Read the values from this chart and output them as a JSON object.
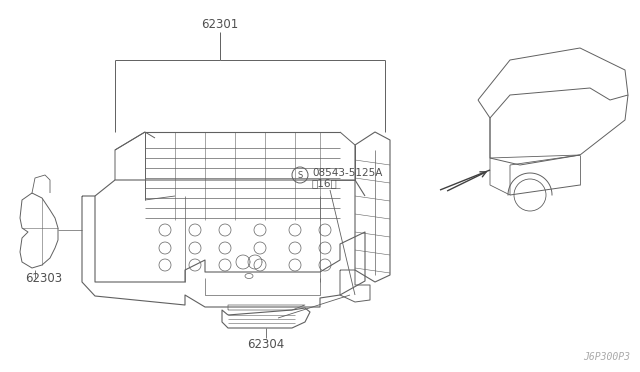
{
  "background_color": "#ffffff",
  "fig_width": 6.4,
  "fig_height": 3.72,
  "dpi": 100,
  "labels": {
    "part_62301": "62301",
    "part_62303": "62303",
    "part_62304": "62304",
    "part_screw": "08543-5125A\n（16）",
    "part_screw2": "(16)",
    "diagram_code": "J6P300P3"
  },
  "line_color": "#606060",
  "line_width": 0.7,
  "text_color": "#505050"
}
